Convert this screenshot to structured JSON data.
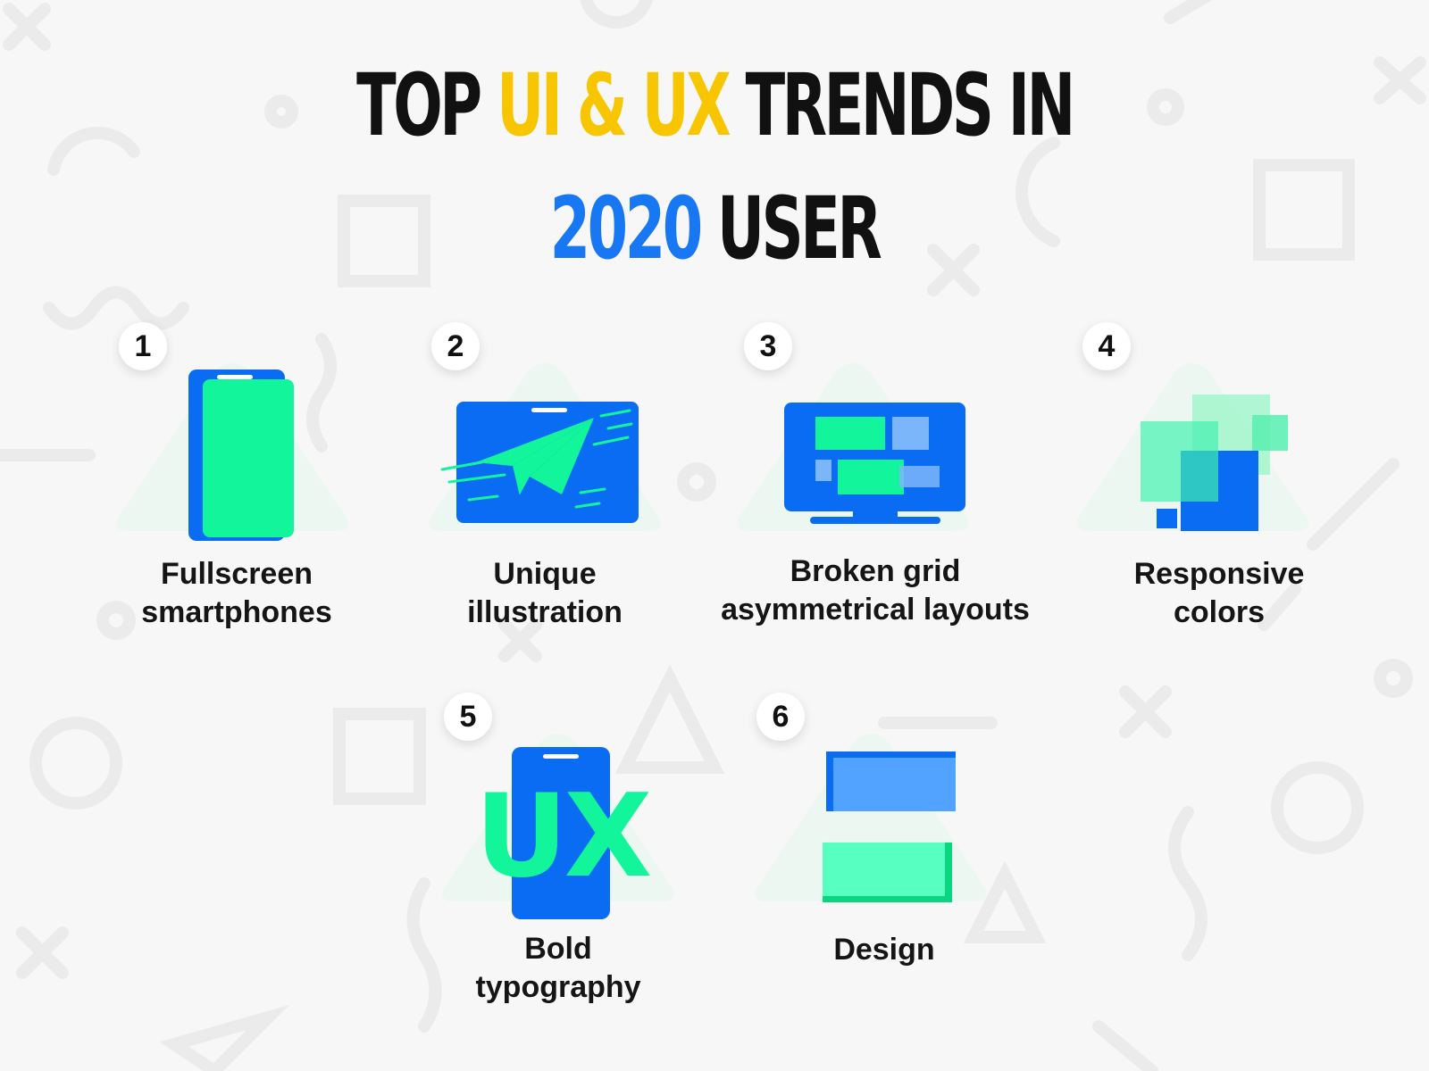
{
  "title": {
    "line1": [
      {
        "text": "TOP ",
        "color": "#111111"
      },
      {
        "text": "UI & UX",
        "color": "#f7c600"
      },
      {
        "text": " TRENDS IN",
        "color": "#111111"
      }
    ],
    "line2": [
      {
        "text": "2020",
        "color": "#1877f2"
      },
      {
        "text": " USER",
        "color": "#111111"
      }
    ]
  },
  "colors": {
    "blue": "#0a6cf3",
    "green": "#13f59b",
    "yellow": "#f7c600",
    "background": "#f7f7f7"
  },
  "trends": [
    {
      "number": "1",
      "label_lines": [
        "Fullscreen",
        "smartphones"
      ],
      "icon": "smartphone-icon"
    },
    {
      "number": "2",
      "label_lines": [
        "Unique",
        "illustration"
      ],
      "icon": "paper-plane-screen-icon"
    },
    {
      "number": "3",
      "label_lines": [
        "Broken grid",
        "asymmetrical layouts"
      ],
      "icon": "monitor-broken-grid-icon"
    },
    {
      "number": "4",
      "label_lines": [
        "Responsive",
        "colors"
      ],
      "icon": "overlapping-squares-icon"
    },
    {
      "number": "5",
      "label_lines": [
        "Bold",
        "typography"
      ],
      "icon": "ux-phone-icon",
      "icon_text": "UX"
    },
    {
      "number": "6",
      "label_lines": [
        "Design"
      ],
      "icon": "stacked-cards-icon"
    }
  ]
}
